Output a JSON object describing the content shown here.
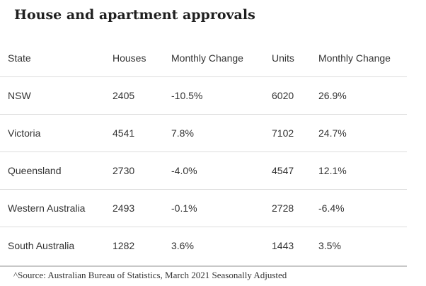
{
  "title": "House and apartment approvals",
  "table": {
    "headers": [
      "State",
      "Houses",
      "Monthly Change",
      "Units",
      "Monthly Change"
    ],
    "rows": [
      [
        "NSW",
        "2405",
        "-10.5%",
        "6020",
        "26.9%"
      ],
      [
        "Victoria",
        "4541",
        "7.8%",
        "7102",
        "24.7%"
      ],
      [
        "Queensland",
        "2730",
        "-4.0%",
        "4547",
        "12.1%"
      ],
      [
        "Western Australia",
        "2493",
        "-0.1%",
        "2728",
        "-6.4%"
      ],
      [
        "South Australia",
        "1282",
        "3.6%",
        "1443",
        "3.5%"
      ]
    ]
  },
  "source": "^Source: Australian Bureau of Statistics, March 2021 Seasonally Adjusted"
}
